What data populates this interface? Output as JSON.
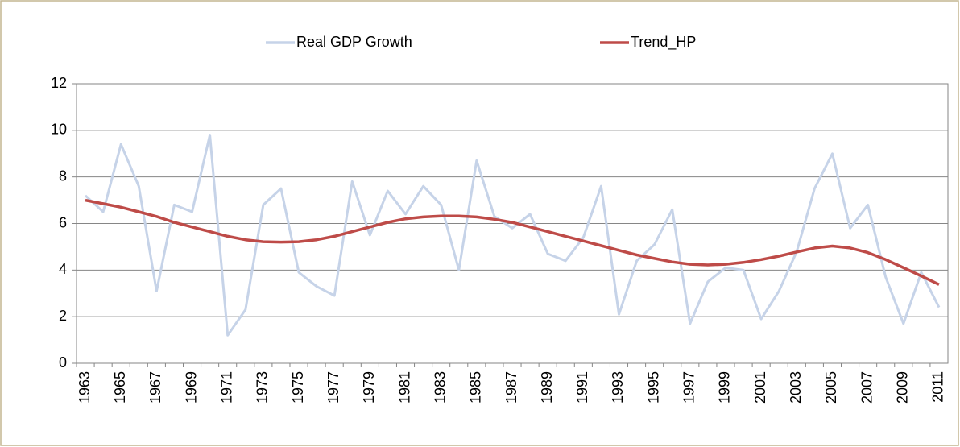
{
  "chart_data": {
    "type": "line",
    "categories": [
      "1963",
      null,
      "1965",
      null,
      "1967",
      null,
      "1969",
      null,
      "1971",
      null,
      "1973",
      null,
      "1975",
      null,
      "1977",
      null,
      "1979",
      null,
      "1981",
      null,
      "1983",
      null,
      "1985",
      null,
      "1987",
      null,
      "1989",
      null,
      "1991",
      null,
      "1993",
      null,
      "1995",
      null,
      "1997",
      null,
      "1999",
      null,
      "2001",
      null,
      "2003",
      null,
      "2005",
      null,
      "2007",
      null,
      "2009",
      null,
      "2011"
    ],
    "series": [
      {
        "name": "Real GDP Growth",
        "color": "#c6d3e8",
        "values": [
          7.2,
          6.5,
          9.4,
          7.6,
          3.1,
          6.8,
          6.5,
          9.8,
          1.2,
          2.3,
          6.8,
          7.5,
          3.9,
          3.3,
          2.9,
          7.8,
          5.5,
          7.4,
          6.4,
          7.6,
          6.8,
          4.0,
          8.7,
          6.3,
          5.8,
          6.4,
          4.7,
          4.4,
          5.4,
          7.6,
          2.1,
          4.4,
          5.1,
          6.6,
          1.7,
          3.5,
          4.1,
          4.0,
          1.9,
          3.1,
          4.8,
          7.5,
          9.0,
          5.8,
          6.8,
          3.7,
          1.7,
          3.9,
          2.4
        ]
      },
      {
        "name": "Trend_HP",
        "color": "#be4b48",
        "values": [
          7.0,
          6.85,
          6.7,
          6.5,
          6.3,
          6.05,
          5.85,
          5.65,
          5.45,
          5.3,
          5.22,
          5.2,
          5.22,
          5.3,
          5.45,
          5.65,
          5.85,
          6.05,
          6.2,
          6.28,
          6.32,
          6.32,
          6.28,
          6.18,
          6.05,
          5.85,
          5.65,
          5.45,
          5.25,
          5.05,
          4.85,
          4.65,
          4.5,
          4.35,
          4.25,
          4.22,
          4.25,
          4.33,
          4.45,
          4.6,
          4.78,
          4.95,
          5.03,
          4.95,
          4.75,
          4.45,
          4.1,
          3.75,
          3.38
        ]
      }
    ],
    "ylim": [
      0,
      12
    ],
    "yticks": [
      0,
      2,
      4,
      6,
      8,
      10,
      12
    ],
    "grid": true,
    "legend": "top"
  }
}
